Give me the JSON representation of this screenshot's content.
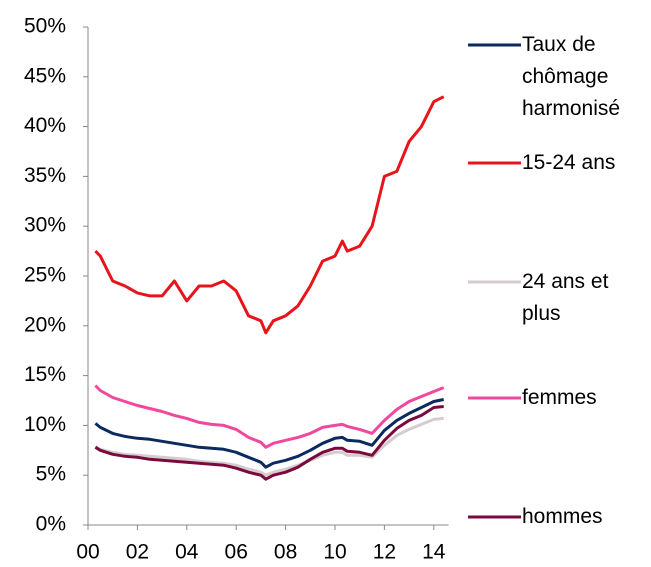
{
  "chart_data": {
    "type": "line",
    "x": [
      2000.3,
      2000.5,
      2001,
      2001.5,
      2002,
      2002.5,
      2003,
      2003.5,
      2004,
      2004.5,
      2005,
      2005.5,
      2006,
      2006.5,
      2007,
      2007.2,
      2007.5,
      2008,
      2008.5,
      2009,
      2009.5,
      2010,
      2010.3,
      2010.5,
      2011,
      2011.5,
      2012,
      2012.5,
      2013,
      2013.5,
      2014,
      2014.4
    ],
    "series": [
      {
        "name": "Taux de chômage harmonisé",
        "color": "#0d2a5e",
        "values": [
          10.2,
          9.8,
          9.2,
          8.9,
          8.7,
          8.6,
          8.4,
          8.2,
          8.0,
          7.8,
          7.7,
          7.6,
          7.3,
          6.8,
          6.3,
          5.8,
          6.2,
          6.5,
          6.9,
          7.5,
          8.2,
          8.7,
          8.8,
          8.5,
          8.4,
          8.0,
          9.5,
          10.5,
          11.2,
          11.8,
          12.4,
          12.6
        ]
      },
      {
        "name": "15-24 ans",
        "color": "#e8141b",
        "values": [
          27.5,
          27,
          24.5,
          24,
          23.3,
          23,
          23,
          24.5,
          22.5,
          24,
          24,
          24.5,
          23.5,
          21,
          20.5,
          19.3,
          20.5,
          21,
          22,
          24,
          26.5,
          27,
          28.5,
          27.5,
          28,
          30,
          35,
          35.5,
          38.5,
          40,
          42.5,
          43
        ]
      },
      {
        "name": "24 ans et plus",
        "color": "#d6cccf",
        "values": [
          7.9,
          7.6,
          7.3,
          7.1,
          7.0,
          6.9,
          6.8,
          6.7,
          6.6,
          6.4,
          6.3,
          6.2,
          6.0,
          5.6,
          5.3,
          5.0,
          5.3,
          5.6,
          6.0,
          6.5,
          7.0,
          7.3,
          7.3,
          7.0,
          7.0,
          6.8,
          8.0,
          9.0,
          9.6,
          10.1,
          10.6,
          10.7
        ]
      },
      {
        "name": "femmes",
        "color": "#f0489c",
        "values": [
          14,
          13.5,
          12.8,
          12.4,
          12,
          11.7,
          11.4,
          11,
          10.7,
          10.3,
          10.1,
          10,
          9.6,
          8.8,
          8.3,
          7.8,
          8.2,
          8.5,
          8.8,
          9.2,
          9.8,
          10,
          10.1,
          9.9,
          9.6,
          9.2,
          10.5,
          11.6,
          12.4,
          12.9,
          13.4,
          13.8
        ]
      },
      {
        "name": "hommes",
        "color": "#7a0a3e",
        "values": [
          7.8,
          7.5,
          7.1,
          6.9,
          6.8,
          6.6,
          6.5,
          6.4,
          6.3,
          6.2,
          6.1,
          6.0,
          5.7,
          5.3,
          5.0,
          4.6,
          5.0,
          5.3,
          5.8,
          6.6,
          7.3,
          7.7,
          7.7,
          7.4,
          7.3,
          7.0,
          8.5,
          9.7,
          10.5,
          11.0,
          11.8,
          11.9
        ]
      }
    ],
    "xlim": [
      2000,
      2014.6
    ],
    "xticks": [
      {
        "value": 2000,
        "label": "00"
      },
      {
        "value": 2002,
        "label": "02"
      },
      {
        "value": 2004,
        "label": "04"
      },
      {
        "value": 2006,
        "label": "06"
      },
      {
        "value": 2008,
        "label": "08"
      },
      {
        "value": 2010,
        "label": "10"
      },
      {
        "value": 2012,
        "label": "12"
      },
      {
        "value": 2014,
        "label": "14"
      }
    ],
    "ylim": [
      0,
      50
    ],
    "yticks": [
      {
        "value": 0,
        "label": "0%"
      },
      {
        "value": 5,
        "label": "5%"
      },
      {
        "value": 10,
        "label": "10%"
      },
      {
        "value": 15,
        "label": "15%"
      },
      {
        "value": 20,
        "label": "20%"
      },
      {
        "value": 25,
        "label": "25%"
      },
      {
        "value": 30,
        "label": "30%"
      },
      {
        "value": 35,
        "label": "35%"
      },
      {
        "value": 40,
        "label": "40%"
      },
      {
        "value": 45,
        "label": "45%"
      },
      {
        "value": 50,
        "label": "50%"
      }
    ],
    "grid": false,
    "legend": "right"
  }
}
